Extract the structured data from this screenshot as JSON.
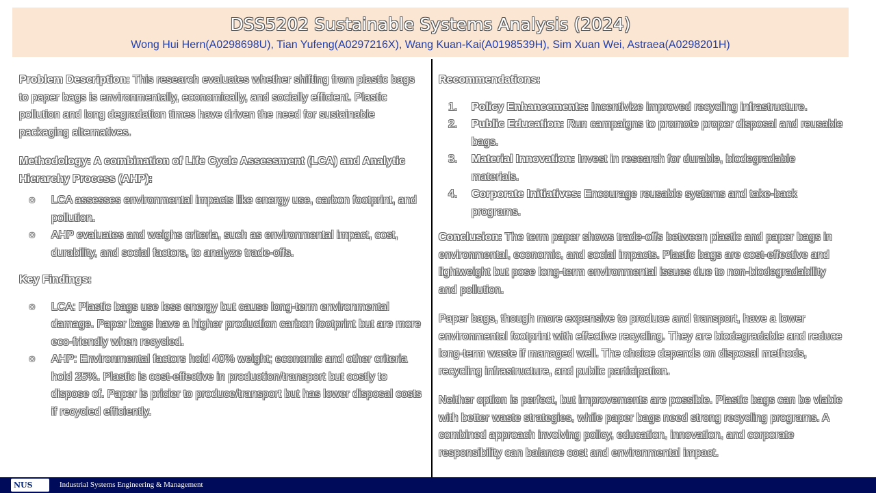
{
  "header": {
    "title": "DSS5202 Sustainable Systems Analysis (2024)",
    "authors": "Wong Hui Hern(A0298698U), Tian Yufeng(A0297216X), Wang Kuan-Kai(A0198539H), Sim Xuan Wei, Astraea(A0298201H)"
  },
  "left": {
    "problem_label": "Problem Description:",
    "problem_text": " This research evaluates whether shifting from plastic bags to paper bags is environmentally, economically, and socially efficient. Plastic pollution and long degradation times have driven the need for sustainable packaging alternatives.",
    "method_heading": "Methodology: A combination of Life Cycle Assessment (LCA) and Analytic Hierarchy Process (AHP):",
    "method_items": [
      "LCA assesses environmental impacts like energy use, carbon footprint, and pollution.",
      "AHP evaluates and weighs criteria, such as environmental impact, cost, durability, and social factors, to analyze trade-offs."
    ],
    "findings_heading": "Key Findings:",
    "findings_items": [
      "LCA: Plastic bags use less energy but cause long-term environmental damage. Paper bags have a higher production carbon footprint but are more eco-friendly when recycled.",
      "AHP: Environmental factors hold 40% weight; economic and other criteria hold 25%. Plastic is cost-effective in production/transport but costly to dispose of. Paper is pricier to produce/transport but has lower disposal costs if recycled efficiently."
    ],
    "bullet_glyph": "○"
  },
  "right": {
    "rec_heading": "Recommendations:",
    "recs": [
      {
        "num": "1.",
        "label": "Policy Enhancements:",
        "text": " Incentivize improved recycling infrastructure."
      },
      {
        "num": "2.",
        "label": "Public Education:",
        "text": " Run campaigns to promote proper disposal and reusable bags."
      },
      {
        "num": "3.",
        "label": "Material Innovation:",
        "text": " Invest in research for durable, biodegradable materials."
      },
      {
        "num": "4.",
        "label": "Corporate Initiatives:",
        "text": " Encourage reusable systems and take-back programs."
      }
    ],
    "conclusion_label": "Conclusion:",
    "conclusion_text": " The term paper shows trade-offs between plastic and paper bags in environmental, economic, and social impacts. Plastic bags are cost-effective and lightweight but pose long-term environmental issues due to non-biodegradability and pollution.",
    "para2": "Paper bags, though more expensive to produce and transport, have a lower environmental footprint with effective recycling. They are biodegradable and reduce long-term waste if managed well. The choice depends on disposal methods, recycling infrastructure, and public participation.",
    "para3": "Neither option is perfect, but improvements are possible. Plastic bags can be viable with better waste strategies, while paper bags need strong recycling programs. A combined approach involving policy, education, innovation, and corporate responsibility can balance cost and environmental impact."
  },
  "footer": {
    "logo_text": "NUS",
    "department": "Industrial Systems Engineering & Management"
  }
}
